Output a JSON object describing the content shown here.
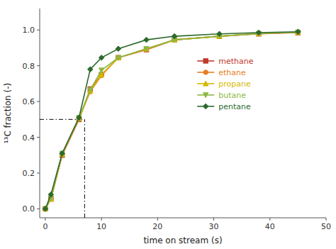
{
  "chart_data": {
    "type": "line",
    "xlabel": "time on stream (s)",
    "ylabel": "¹³C fraction (-)",
    "x": [
      0,
      1,
      3,
      6,
      8,
      10,
      13,
      18,
      23,
      31,
      38,
      45
    ],
    "series": [
      {
        "name": "methane",
        "color": "#c0392b",
        "marker": "square",
        "values": [
          0.0,
          0.055,
          0.3,
          0.5,
          0.67,
          0.75,
          0.845,
          0.89,
          0.945,
          0.965,
          0.978,
          0.985
        ]
      },
      {
        "name": "ethane",
        "color": "#e67e22",
        "marker": "circle",
        "values": [
          0.0,
          0.055,
          0.305,
          0.505,
          0.655,
          0.745,
          0.845,
          0.89,
          0.945,
          0.965,
          0.98,
          0.987
        ]
      },
      {
        "name": "propane",
        "color": "#d4b800",
        "marker": "triangle-up",
        "values": [
          0.0,
          0.055,
          0.305,
          0.505,
          0.66,
          0.75,
          0.845,
          0.895,
          0.945,
          0.965,
          0.98,
          0.987
        ]
      },
      {
        "name": "butane",
        "color": "#8db843",
        "marker": "triangle-down",
        "values": [
          0.0,
          0.06,
          0.31,
          0.51,
          0.665,
          0.775,
          0.845,
          0.895,
          0.945,
          0.965,
          0.98,
          0.987
        ]
      },
      {
        "name": "pentane",
        "color": "#2d6a2d",
        "marker": "diamond",
        "values": [
          0.0,
          0.08,
          0.31,
          0.51,
          0.78,
          0.845,
          0.895,
          0.945,
          0.965,
          0.978,
          0.985,
          0.99
        ]
      }
    ],
    "ref_x": 7.0,
    "ref_y": 0.5,
    "xlim": [
      -1,
      50
    ],
    "xticks": [
      0,
      10,
      20,
      30,
      40,
      50
    ],
    "ylim": [
      -0.05,
      1.12
    ],
    "yticks": [
      {
        "value": 0.0,
        "label": "0.0"
      },
      0.2,
      0.4,
      0.6,
      0.8,
      {
        "value": 1.0,
        "label": "1.0"
      }
    ],
    "grid": false,
    "legend": "center right"
  }
}
